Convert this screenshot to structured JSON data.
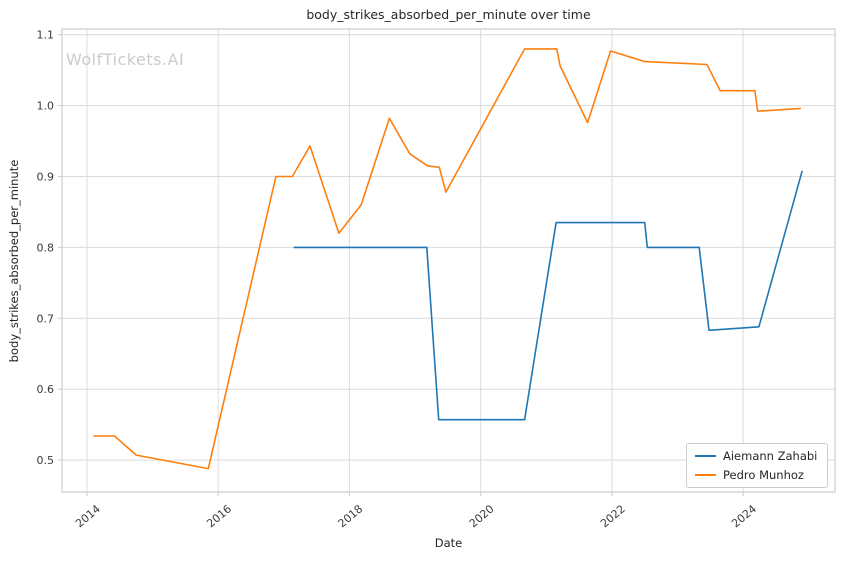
{
  "watermark": "WolfTickets.AI",
  "chart_data": {
    "type": "line",
    "title": "body_strikes_absorbed_per_minute over time",
    "xlabel": "Date",
    "ylabel": "body_strikes_absorbed_per_minute",
    "x_ticks": [
      2014,
      2016,
      2018,
      2020,
      2022,
      2024
    ],
    "y_ticks": [
      0.5,
      0.6,
      0.7,
      0.8,
      0.9,
      1.0,
      1.1
    ],
    "xlim": [
      2013.62,
      2025.4
    ],
    "ylim": [
      0.455,
      1.108
    ],
    "grid": true,
    "legend_position": "lower right",
    "grid_color": "#dcdcdc",
    "spine_color": "#cccccc",
    "text_color": "#3b3b3b",
    "watermark_color": "#cccccc",
    "series": [
      {
        "name": "Aiemann Zahabi",
        "color": "#1f77b4",
        "points": [
          [
            2017.15,
            0.8
          ],
          [
            2019.18,
            0.8
          ],
          [
            2019.36,
            0.557
          ],
          [
            2020.67,
            0.557
          ],
          [
            2021.15,
            0.835
          ],
          [
            2022.5,
            0.835
          ],
          [
            2022.54,
            0.8
          ],
          [
            2023.33,
            0.8
          ],
          [
            2023.48,
            0.683
          ],
          [
            2024.24,
            0.688
          ],
          [
            2024.9,
            0.908
          ]
        ]
      },
      {
        "name": "Pedro Munhoz",
        "color": "#ff7f0e",
        "points": [
          [
            2014.1,
            0.534
          ],
          [
            2014.42,
            0.534
          ],
          [
            2014.75,
            0.507
          ],
          [
            2015.85,
            0.488
          ],
          [
            2016.88,
            0.9
          ],
          [
            2017.13,
            0.9
          ],
          [
            2017.4,
            0.943
          ],
          [
            2017.84,
            0.82
          ],
          [
            2018.18,
            0.86
          ],
          [
            2018.61,
            0.982
          ],
          [
            2018.92,
            0.932
          ],
          [
            2019.19,
            0.915
          ],
          [
            2019.37,
            0.913
          ],
          [
            2019.47,
            0.878
          ],
          [
            2020.67,
            1.08
          ],
          [
            2021.16,
            1.08
          ],
          [
            2021.21,
            1.056
          ],
          [
            2021.63,
            0.976
          ],
          [
            2021.98,
            1.077
          ],
          [
            2022.5,
            1.062
          ],
          [
            2023.45,
            1.058
          ],
          [
            2023.65,
            1.021
          ],
          [
            2024.18,
            1.021
          ],
          [
            2024.22,
            0.992
          ],
          [
            2024.88,
            0.996
          ]
        ]
      }
    ]
  }
}
